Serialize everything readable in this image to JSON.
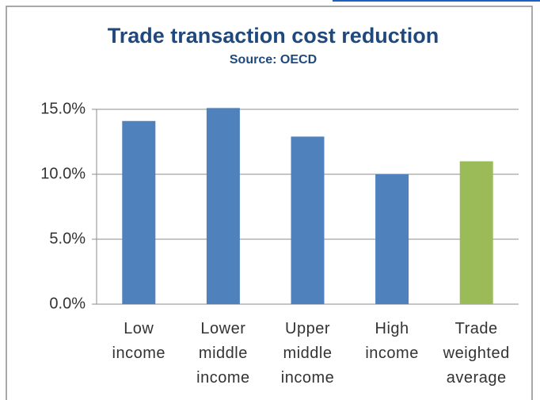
{
  "chart_data": {
    "type": "bar",
    "title": "Trade transaction cost reduction",
    "subtitle": "Source: OECD",
    "categories": [
      "Low income",
      "Lower middle income",
      "Upper middle income",
      "High income",
      "Trade weighted average"
    ],
    "values": [
      14.1,
      15.1,
      12.9,
      10.0,
      11.0
    ],
    "colors": [
      "#4f81bd",
      "#4f81bd",
      "#4f81bd",
      "#4f81bd",
      "#9bbb59"
    ],
    "ylim": [
      0,
      15
    ],
    "yticks": [
      {
        "value": 0,
        "label": "0.0%"
      },
      {
        "value": 5,
        "label": "5.0%"
      },
      {
        "value": 10,
        "label": "10.0%"
      },
      {
        "value": 15,
        "label": "15.0%"
      }
    ],
    "grid": true
  }
}
